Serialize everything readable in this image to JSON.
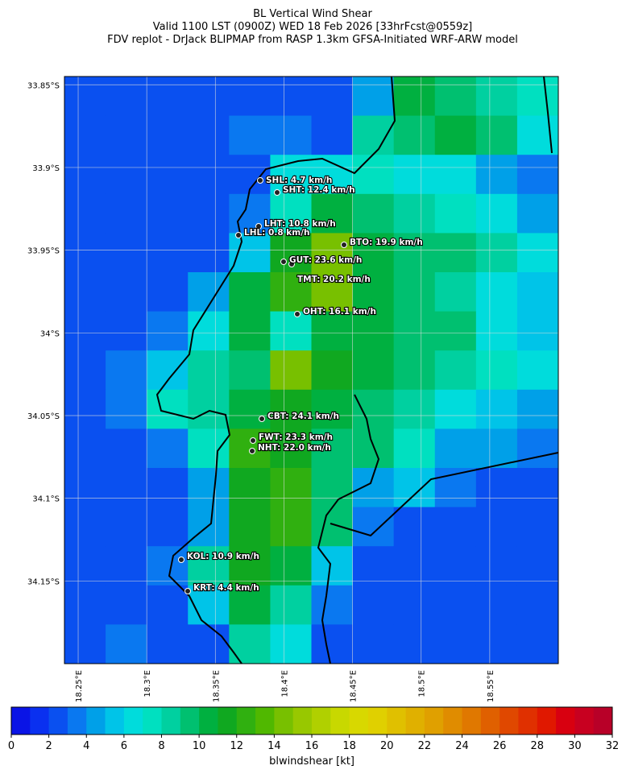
{
  "header": {
    "title_lines": [
      "BL Vertical Wind Shear",
      "Valid 1100 LST (0900Z) WED 18 Feb 2026 [33hrFcst@0559z]",
      "FDV replot - DrJack BLIPMAP from RASP 1.3km GFSA-Initiated WRF-ARW model"
    ]
  },
  "map": {
    "xlim": [
      18.24,
      18.6
    ],
    "ylim": [
      -34.2,
      -33.845
    ],
    "xticks": [
      {
        "value": 18.25,
        "label": "18.25°E"
      },
      {
        "value": 18.3,
        "label": "18.3°E"
      },
      {
        "value": 18.35,
        "label": "18.35°E"
      },
      {
        "value": 18.4,
        "label": "18.4°E"
      },
      {
        "value": 18.45,
        "label": "18.45°E"
      },
      {
        "value": 18.5,
        "label": "18.5°E"
      },
      {
        "value": 18.55,
        "label": "18.55°E"
      }
    ],
    "yticks": [
      {
        "value": -33.85,
        "label": "33.85°S"
      },
      {
        "value": -33.9,
        "label": "33.9°S"
      },
      {
        "value": -33.95,
        "label": "33.95°S"
      },
      {
        "value": -34,
        "label": "34°S"
      },
      {
        "value": -34.05,
        "label": "34.05°S"
      },
      {
        "value": -34.1,
        "label": "34.1°S"
      },
      {
        "value": -34.15,
        "label": "34.15°S"
      }
    ],
    "grid": true,
    "shear_grid": [
      [
        2,
        2,
        2,
        2,
        2,
        2,
        2,
        4,
        10,
        9,
        8,
        7
      ],
      [
        2,
        2,
        2,
        2,
        3,
        3,
        2,
        8,
        9,
        10,
        9,
        6
      ],
      [
        2,
        2,
        2,
        2,
        2,
        6,
        6,
        7,
        6,
        6,
        4,
        3
      ],
      [
        2,
        2,
        2,
        2,
        3,
        7,
        10,
        9,
        8,
        7,
        6,
        4
      ],
      [
        2,
        2,
        2,
        2,
        5,
        11,
        14,
        10,
        9,
        9,
        8,
        6
      ],
      [
        2,
        2,
        2,
        4,
        10,
        12,
        14,
        10,
        9,
        8,
        6,
        5
      ],
      [
        2,
        2,
        3,
        6,
        10,
        7,
        10,
        10,
        9,
        9,
        6,
        5
      ],
      [
        2,
        3,
        5,
        8,
        9,
        14,
        11,
        10,
        9,
        8,
        7,
        6
      ],
      [
        2,
        3,
        7,
        8,
        10,
        11,
        10,
        9,
        8,
        6,
        5,
        4
      ],
      [
        2,
        2,
        3,
        7,
        12,
        11,
        9,
        9,
        7,
        4,
        4,
        3
      ],
      [
        2,
        2,
        2,
        4,
        11,
        12,
        9,
        4,
        5,
        3,
        2,
        2
      ],
      [
        2,
        2,
        2,
        4,
        11,
        12,
        9,
        3,
        2,
        2,
        2,
        2
      ],
      [
        2,
        2,
        3,
        8,
        11,
        10,
        5,
        2,
        2,
        2,
        2,
        2
      ],
      [
        2,
        2,
        2,
        5,
        10,
        8,
        3,
        2,
        2,
        2,
        2,
        2
      ],
      [
        2,
        3,
        2,
        2,
        8,
        6,
        2,
        2,
        2,
        2,
        2,
        2
      ]
    ],
    "stations": [
      "SHL: 4.7 km/h",
      "SHT: 12.4 km/h",
      "LHT: 10.8 km/h",
      "LHL: 0.8 km/h",
      "BTO: 19.9 km/h",
      "GUT: 23.6 km/h",
      "TMT: 20.2 km/h",
      "OHT: 16.1 km/h",
      "CBT: 24.1 km/h",
      "FWT: 23.3 km/h",
      "NHT: 22.0 km/h",
      "KOL: 10.9 km/h",
      "KRT: 4.4 km/h"
    ]
  },
  "colorbar": {
    "lim": [
      0,
      32
    ],
    "ticks": [
      0,
      2,
      4,
      6,
      8,
      10,
      12,
      14,
      16,
      18,
      20,
      22,
      24,
      26,
      28,
      30,
      32
    ],
    "label": "blwindshear [kt]",
    "colors": [
      "#0a14e6",
      "#0a30f0",
      "#0a50f0",
      "#0a78f0",
      "#00a0e8",
      "#00c4e8",
      "#00dcdc",
      "#00e0c0",
      "#00d0a0",
      "#00c070",
      "#00b040",
      "#10a820",
      "#30b010",
      "#50b800",
      "#78c000",
      "#98c800",
      "#b0d000",
      "#c8d800",
      "#d8d800",
      "#e0d000",
      "#e0c000",
      "#e0b000",
      "#e0a000",
      "#e08c00",
      "#e07800",
      "#e06000",
      "#e04800",
      "#e03000",
      "#e01800",
      "#d80010",
      "#c80020",
      "#b80028"
    ]
  }
}
